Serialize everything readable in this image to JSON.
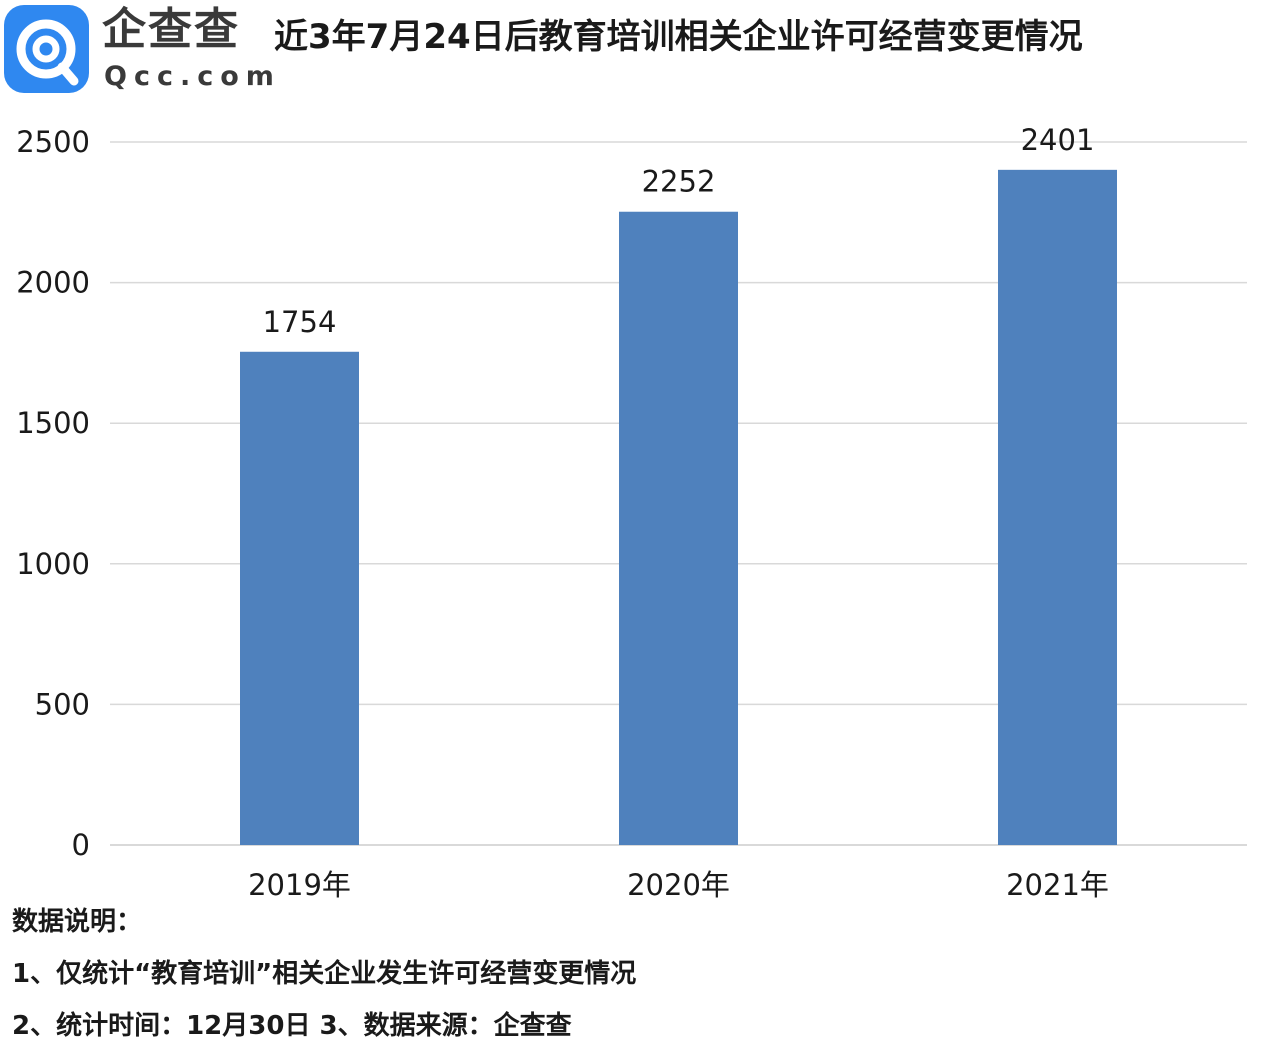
{
  "header": {
    "logo_name": "企查查",
    "logo_domain": "Qcc.com",
    "title": "近3年7月24日后教育培训相关企业许可经营变更情况"
  },
  "colors": {
    "bar": "#4f81bd",
    "grid": "#d9d9d9",
    "logo": "#2f88f0"
  },
  "chart_data": {
    "type": "bar",
    "categories": [
      "2019年",
      "2020年",
      "2021年"
    ],
    "values": [
      1754,
      2252,
      2401
    ],
    "ylim": [
      0,
      2500
    ],
    "yticks": [
      0,
      500,
      1000,
      1500,
      2000,
      2500
    ],
    "grid": true,
    "legend": "none",
    "data_labels": true
  },
  "notes": {
    "heading": "数据说明：",
    "line1": "1、仅统计“教育培训”相关企业发生许可经营变更情况",
    "line2": "2、统计时间：12月30日   3、数据来源：企查查"
  }
}
